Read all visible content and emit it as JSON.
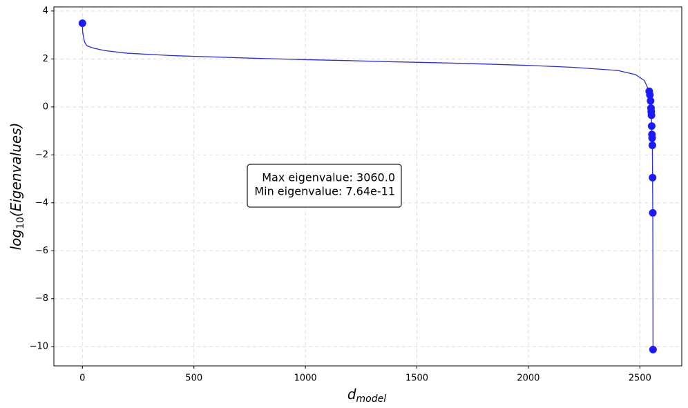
{
  "chart_data": {
    "type": "line",
    "xlabel": [
      "d",
      "model"
    ],
    "ylabel": [
      "log",
      "10",
      "(Eigenvalues)"
    ],
    "annotation": [
      "Max eigenvalue: 3060.0",
      "Min eigenvalue: 7.64e-11"
    ],
    "xlim": [
      -128,
      2688
    ],
    "ylim": [
      -10.8,
      4.17
    ],
    "xticks": [
      0,
      500,
      1000,
      1500,
      2000,
      2500
    ],
    "yticks": [
      {
        "value": -10,
        "label": "−10"
      },
      {
        "value": -8,
        "label": "−8"
      },
      {
        "value": -6,
        "label": "−6"
      },
      {
        "value": -4,
        "label": "−4"
      },
      {
        "value": -2,
        "label": "−2"
      },
      0,
      2,
      4
    ],
    "grid": true,
    "series": [
      {
        "mode": "line",
        "color": "#2a2aee",
        "x": [
          0,
          1,
          2,
          5,
          10,
          20,
          50,
          100,
          200,
          400,
          600,
          800,
          1000,
          1200,
          1400,
          1600,
          1800,
          2000,
          2200,
          2400,
          2480,
          2520,
          2535,
          2542,
          2545,
          2548,
          2550,
          2551,
          2552,
          2553,
          2554,
          2555,
          2556,
          2557,
          2558,
          2559
        ],
        "values": [
          3.49,
          3.15,
          3.08,
          2.9,
          2.7,
          2.55,
          2.45,
          2.35,
          2.24,
          2.14,
          2.08,
          2.02,
          1.97,
          1.93,
          1.88,
          1.84,
          1.79,
          1.73,
          1.65,
          1.52,
          1.35,
          1.1,
          0.8,
          0.65,
          0.5,
          0.25,
          -0.05,
          -0.2,
          -0.35,
          -0.8,
          -1.15,
          -1.3,
          -1.6,
          -2.95,
          -4.42,
          -10.12
        ]
      },
      {
        "mode": "markers",
        "color": "#1a1aff",
        "x": [
          0,
          2542,
          2545,
          2548,
          2550,
          2551,
          2552,
          2553,
          2554,
          2555,
          2556,
          2557,
          2558,
          2559
        ],
        "values": [
          3.49,
          0.65,
          0.5,
          0.25,
          -0.05,
          -0.2,
          -0.35,
          -0.8,
          -1.15,
          -1.3,
          -1.6,
          -2.95,
          -4.42,
          -10.12
        ]
      }
    ]
  }
}
